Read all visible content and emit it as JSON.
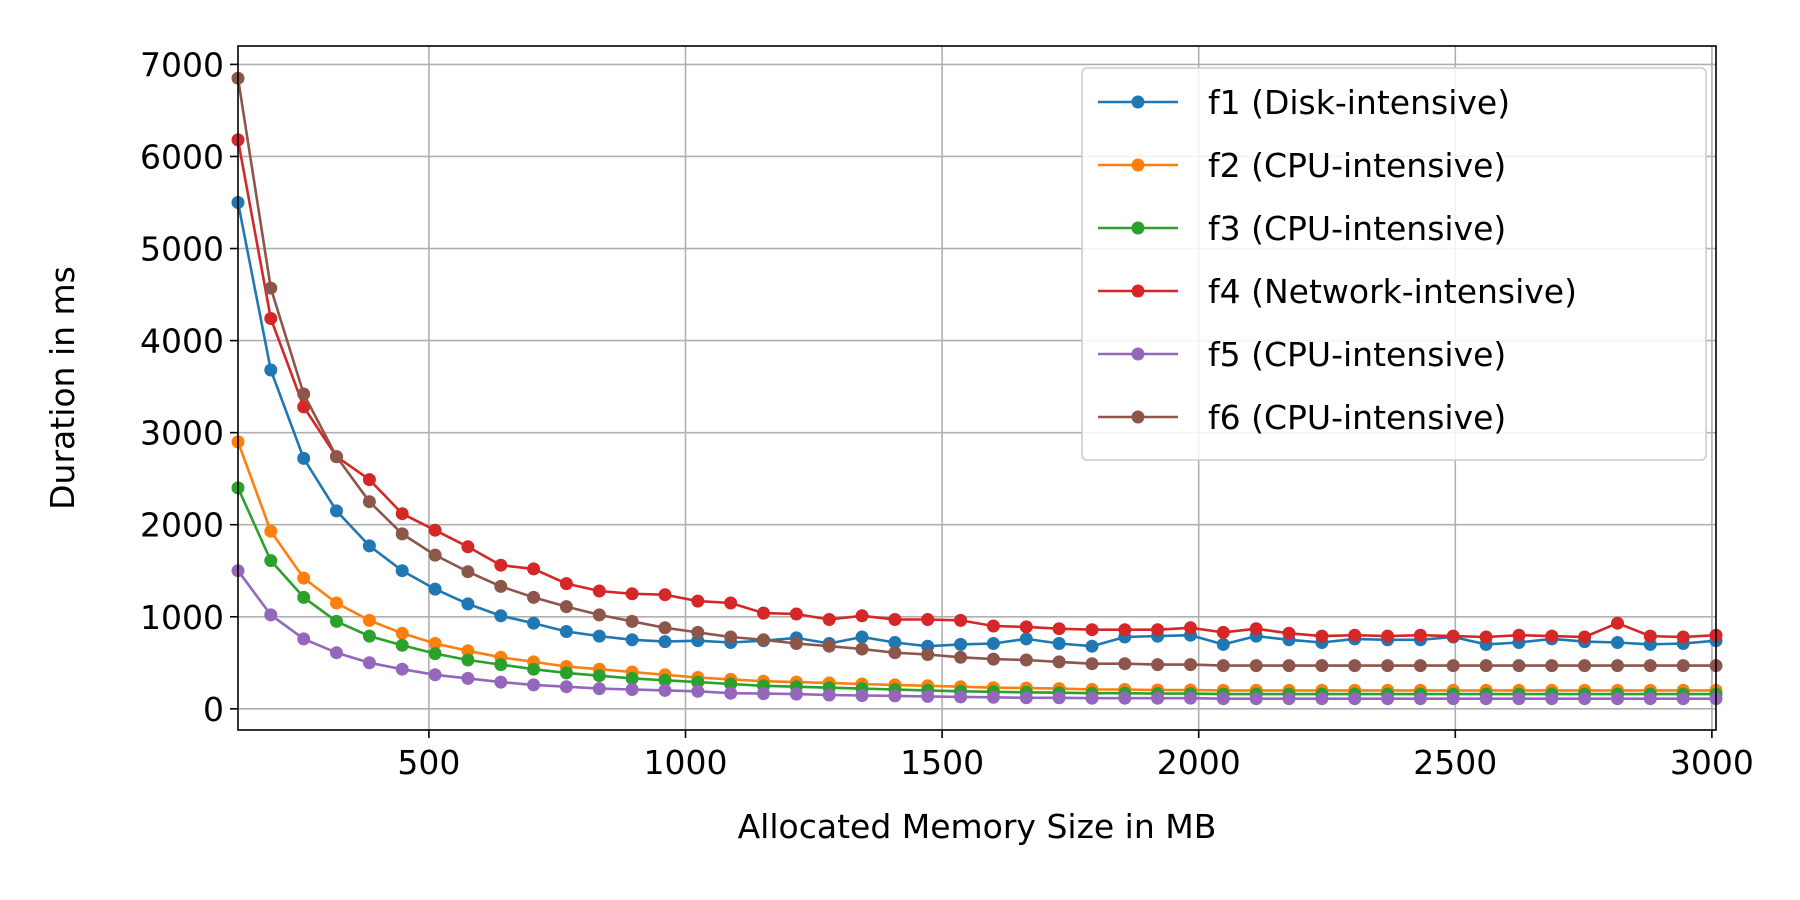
{
  "chart_data": {
    "type": "line",
    "title": "",
    "xlabel": "Allocated Memory Size in MB",
    "ylabel": "Duration in ms",
    "xlim": [
      128,
      3008
    ],
    "ylim": [
      -230,
      7200
    ],
    "xticks": [
      500,
      1000,
      1500,
      2000,
      2500,
      3000
    ],
    "yticks": [
      0,
      1000,
      2000,
      3000,
      4000,
      5000,
      6000,
      7000
    ],
    "grid": true,
    "legend_position": "top-right",
    "x": [
      128,
      192,
      256,
      320,
      384,
      448,
      512,
      576,
      640,
      704,
      768,
      832,
      896,
      960,
      1024,
      1088,
      1152,
      1216,
      1280,
      1344,
      1408,
      1472,
      1536,
      1600,
      1664,
      1728,
      1792,
      1856,
      1920,
      1984,
      2048,
      2112,
      2176,
      2240,
      2304,
      2368,
      2432,
      2496,
      2560,
      2624,
      2688,
      2752,
      2816,
      2880,
      2944,
      3008
    ],
    "series": [
      {
        "name": "f1 (Disk-intensive)",
        "color": "#1f77b4",
        "values": [
          5500,
          3680,
          2720,
          2150,
          1770,
          1500,
          1300,
          1140,
          1010,
          930,
          840,
          790,
          750,
          730,
          740,
          720,
          740,
          770,
          710,
          780,
          720,
          680,
          700,
          710,
          760,
          710,
          680,
          780,
          790,
          800,
          700,
          790,
          750,
          720,
          760,
          750,
          750,
          780,
          700,
          720,
          760,
          730,
          720,
          700,
          710,
          740
        ]
      },
      {
        "name": "f2 (CPU-intensive)",
        "color": "#ff7f0e",
        "values": [
          2900,
          1930,
          1420,
          1150,
          960,
          820,
          710,
          630,
          560,
          510,
          460,
          430,
          400,
          370,
          340,
          320,
          300,
          290,
          280,
          270,
          260,
          250,
          240,
          230,
          225,
          220,
          210,
          210,
          205,
          205,
          200,
          200,
          200,
          200,
          200,
          200,
          200,
          200,
          200,
          200,
          200,
          200,
          200,
          200,
          200,
          200
        ]
      },
      {
        "name": "f3 (CPU-intensive)",
        "color": "#2ca02c",
        "values": [
          2400,
          1610,
          1210,
          950,
          790,
          690,
          600,
          530,
          480,
          430,
          390,
          360,
          330,
          310,
          290,
          270,
          250,
          240,
          230,
          220,
          210,
          200,
          190,
          185,
          180,
          175,
          170,
          170,
          165,
          165,
          160,
          160,
          160,
          160,
          160,
          160,
          160,
          160,
          160,
          160,
          160,
          160,
          160,
          160,
          160,
          160
        ]
      },
      {
        "name": "f4 (Network-intensive)",
        "color": "#d62728",
        "values": [
          6180,
          4240,
          3280,
          2740,
          2490,
          2120,
          1940,
          1760,
          1560,
          1520,
          1360,
          1280,
          1250,
          1240,
          1170,
          1150,
          1040,
          1030,
          970,
          1010,
          970,
          970,
          960,
          900,
          890,
          870,
          860,
          860,
          860,
          880,
          830,
          870,
          820,
          790,
          800,
          790,
          800,
          790,
          780,
          800,
          790,
          780,
          930,
          790,
          780,
          800
        ]
      },
      {
        "name": "f5 (CPU-intensive)",
        "color": "#9467bd",
        "values": [
          1500,
          1020,
          760,
          610,
          500,
          430,
          370,
          330,
          290,
          260,
          240,
          220,
          210,
          200,
          190,
          170,
          165,
          160,
          150,
          145,
          140,
          135,
          130,
          125,
          120,
          120,
          115,
          115,
          115,
          115,
          110,
          110,
          110,
          110,
          110,
          110,
          110,
          110,
          110,
          110,
          110,
          110,
          110,
          110,
          110,
          110
        ]
      },
      {
        "name": "f6 (CPU-intensive)",
        "color": "#8c564b",
        "values": [
          6850,
          4570,
          3420,
          2740,
          2250,
          1900,
          1670,
          1490,
          1330,
          1210,
          1110,
          1020,
          950,
          880,
          830,
          780,
          750,
          710,
          680,
          650,
          610,
          590,
          560,
          540,
          530,
          510,
          490,
          490,
          480,
          480,
          470,
          470,
          470,
          470,
          470,
          470,
          470,
          470,
          470,
          470,
          470,
          470,
          470,
          470,
          470,
          470
        ]
      }
    ]
  }
}
